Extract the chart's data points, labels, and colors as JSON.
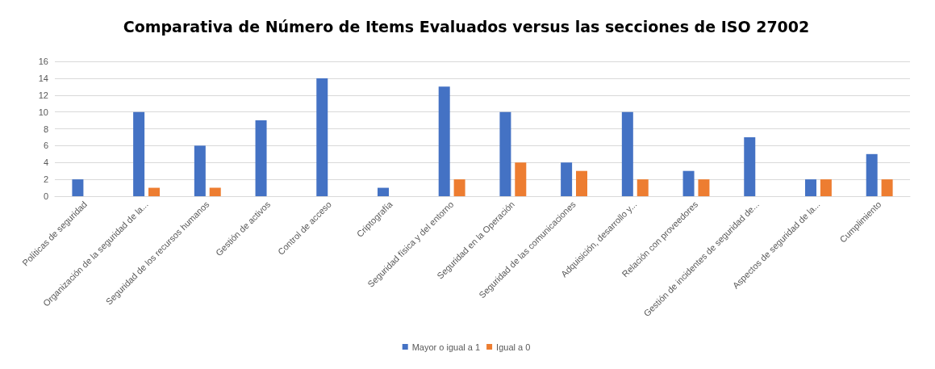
{
  "chart_data": {
    "type": "bar",
    "title": "Comparativa de Número de Items Evaluados versus las secciones de ISO 27002",
    "categories": [
      "Políticas de seguridad",
      "Organización de la seguridad de la...",
      "Seguridad de los recursos humanos",
      "Gestión de activos",
      "Control de acceso",
      "Criptografía",
      "Seguridad física y del entorno",
      "Seguridad en la Operación",
      "Seguridad de las comunicaciones",
      "Adquisición, desarrollo y...",
      "Relación con proveedores",
      "Gestión de incidentes de seguridad de...",
      "Aspectos de seguridad de la...",
      "Cumplimiento"
    ],
    "series": [
      {
        "name": "Mayor o igual a 1",
        "color": "#4472c4",
        "values": [
          2,
          10,
          6,
          9,
          14,
          1,
          13,
          10,
          4,
          10,
          3,
          7,
          2,
          5
        ]
      },
      {
        "name": "Igual a 0",
        "color": "#ed7d31",
        "values": [
          0,
          1,
          1,
          0,
          0,
          0,
          2,
          4,
          3,
          2,
          2,
          0,
          2,
          2
        ]
      }
    ],
    "ylim": [
      0,
      16
    ],
    "yticks": [
      0,
      2,
      4,
      6,
      8,
      10,
      12,
      14,
      16
    ],
    "grid": "y",
    "legend": "bottom"
  }
}
